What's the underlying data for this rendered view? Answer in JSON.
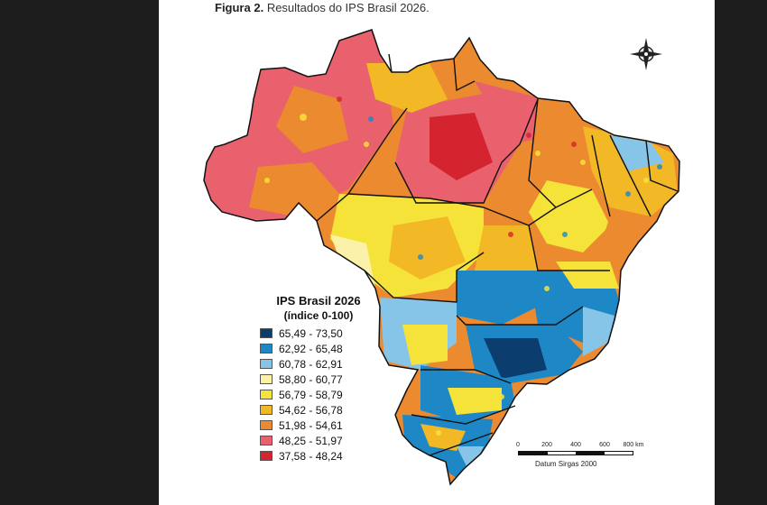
{
  "caption": {
    "label": "Figura 2.",
    "text": "Resultados do IPS Brasil 2026."
  },
  "legend": {
    "title": "IPS Brasil 2026",
    "subtitle": "(índice 0-100)",
    "classes": [
      {
        "range": "65,49 - 73,50",
        "color": "#0b3d6e"
      },
      {
        "range": "62,92 - 65,48",
        "color": "#1e88c7"
      },
      {
        "range": "60,78 - 62,91",
        "color": "#86c4e8"
      },
      {
        "range": "58,80 - 60,77",
        "color": "#fbf1a8"
      },
      {
        "range": "56,79 - 58,79",
        "color": "#f6e33a"
      },
      {
        "range": "54,62 - 56,78",
        "color": "#f2b825"
      },
      {
        "range": "51,98 - 54,61",
        "color": "#ec8a2f"
      },
      {
        "range": "48,25 - 51,97",
        "color": "#e9616c"
      },
      {
        "range": "37,58 - 48,24",
        "color": "#d42430"
      }
    ]
  },
  "scale_bar": {
    "ticks": [
      "0",
      "200",
      "400",
      "600",
      "800 km"
    ],
    "datum": "Datum Sirgas 2000"
  },
  "compass": {
    "icon": "compass-rose-icon"
  },
  "colors": {
    "page_bg": "#ffffff",
    "outside_bg": "#1d1d1d",
    "state_border": "#111111"
  }
}
